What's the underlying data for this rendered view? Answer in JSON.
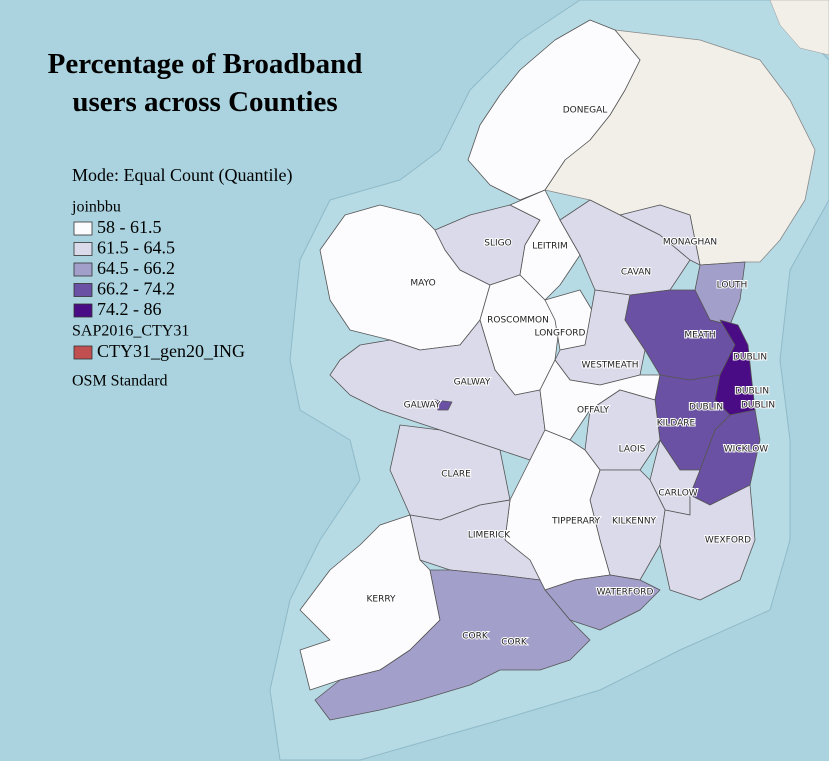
{
  "title": [
    "Percentage of Broadband",
    "users across Counties"
  ],
  "legend": {
    "mode": "Mode: Equal Count (Quantile)",
    "field": "joinbbu",
    "classes": [
      {
        "label": "58 - 61.5",
        "color": "#fcfbfd"
      },
      {
        "label": "61.5 - 64.5",
        "color": "#dadaeb"
      },
      {
        "label": "64.5 - 66.2",
        "color": "#a39fcb"
      },
      {
        "label": "66.2 - 74.2",
        "color": "#6a51a3"
      },
      {
        "label": "74.2 - 86",
        "color": "#4a0c84"
      }
    ],
    "layer": "SAP2016_CTY31",
    "sublayer": {
      "label": "CTY31_gen20_ING",
      "color": "#c24f4f"
    },
    "basemap": "OSM Standard"
  },
  "counties": [
    {
      "name": "DONEGAL",
      "class": 0
    },
    {
      "name": "MAYO",
      "class": 0
    },
    {
      "name": "SLIGO",
      "class": 1
    },
    {
      "name": "LEITRIM",
      "class": 0
    },
    {
      "name": "CAVAN",
      "class": 1
    },
    {
      "name": "MONAGHAN",
      "class": 1
    },
    {
      "name": "LOUTH",
      "class": 2
    },
    {
      "name": "ROSCOMMON",
      "class": 0
    },
    {
      "name": "LONGFORD",
      "class": 0
    },
    {
      "name": "WESTMEATH",
      "class": 1
    },
    {
      "name": "MEATH",
      "class": 3
    },
    {
      "name": "GALWAY",
      "class": 1
    },
    {
      "name": "OFFALY",
      "class": 0
    },
    {
      "name": "KILDARE",
      "class": 3
    },
    {
      "name": "DUBLIN",
      "class": 4
    },
    {
      "name": "WICKLOW",
      "class": 3
    },
    {
      "name": "LAOIS",
      "class": 1
    },
    {
      "name": "CARLOW",
      "class": 1
    },
    {
      "name": "KILKENNY",
      "class": 1
    },
    {
      "name": "WEXFORD",
      "class": 1
    },
    {
      "name": "TIPPERARY",
      "class": 0
    },
    {
      "name": "CLARE",
      "class": 1
    },
    {
      "name": "LIMERICK",
      "class": 1
    },
    {
      "name": "WATERFORD",
      "class": 2
    },
    {
      "name": "KERRY",
      "class": 0
    },
    {
      "name": "CORK",
      "class": 2
    },
    {
      "name": "GALWAY",
      "class": 3
    }
  ],
  "labels": [
    "DONEGAL",
    "SLIGO",
    "LEITRIM",
    "MONAGHAN",
    "CAVAN",
    "LOUTH",
    "MAYO",
    "ROSCOMMON",
    "LONGFORD",
    "MEATH",
    "DUBLIN",
    "WESTMEATH",
    "GALWAY",
    "DUBLIN",
    "DUBLIN",
    "DUBLIN",
    "GALWAY",
    "OFFALY",
    "KILDARE",
    "LAOIS",
    "WICKLOW",
    "CLARE",
    "CARLOW",
    "TIPPERARY",
    "KILKENNY",
    "LIMERICK",
    "WEXFORD",
    "WATERFORD",
    "KERRY",
    "CORK",
    "CORK"
  ]
}
